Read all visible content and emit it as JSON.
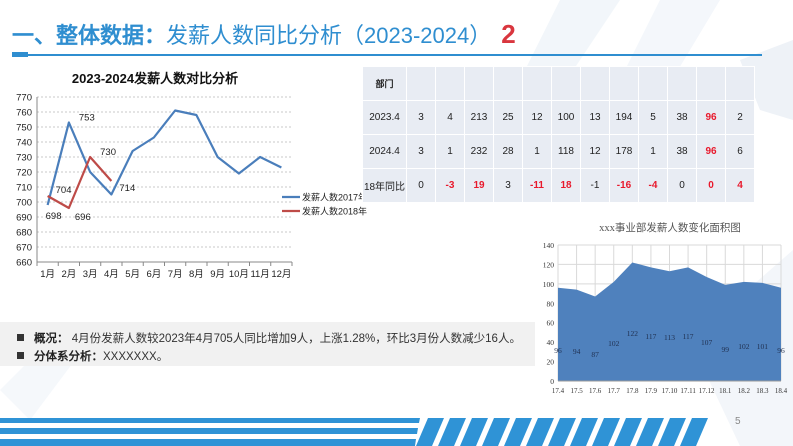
{
  "header": {
    "title_prefix": "一、整体数据：",
    "title_main": "发薪人数同比分析（2023-2024）",
    "section_number": "2",
    "accent_color": "#2f8ed0",
    "number_color": "#d9363e"
  },
  "line_chart": {
    "title": "2023-2024发薪人数对比分析"
  },
  "table": {
    "header_label": "部门",
    "rows": [
      {
        "label": "2023.4",
        "values": [
          "3",
          "4",
          "213",
          "25",
          "12",
          "100",
          "13",
          "194",
          "5",
          "38",
          "96",
          "2"
        ]
      },
      {
        "label": "2024.4",
        "values": [
          "3",
          "1",
          "232",
          "28",
          "1",
          "118",
          "12",
          "178",
          "1",
          "38",
          "96",
          "6"
        ]
      },
      {
        "label": "18年同比",
        "values": [
          "0",
          "-3",
          "19",
          "3",
          "-11",
          "18",
          "-1",
          "-16",
          "-4",
          "0",
          "0",
          "4"
        ]
      }
    ],
    "highlight_color": "#e8192c"
  },
  "area_chart": {
    "title": "xxx事业部发薪人数变化面积图"
  },
  "summary": {
    "items": [
      {
        "label": "概况：",
        "text": " 4月份发薪人数较2023年4月705人同比增加9人，上涨1.28%，环比3月份人数减少16人。"
      },
      {
        "label": "分体系分析：",
        "text": "XXXXXXX。"
      }
    ]
  },
  "footer": {
    "page_number": "5"
  },
  "chart_data": [
    {
      "type": "line",
      "title": "2023-2024发薪人数对比分析",
      "categories": [
        "1月",
        "2月",
        "3月",
        "4月",
        "5月",
        "6月",
        "7月",
        "8月",
        "9月",
        "10月",
        "11月",
        "12月"
      ],
      "series": [
        {
          "name": "发薪人数2017年",
          "color": "#4a7ebb",
          "values": [
            698,
            753,
            720,
            705,
            734,
            743,
            761,
            758,
            730,
            719,
            730,
            723
          ]
        },
        {
          "name": "发薪人数2018年",
          "color": "#be4b48",
          "values": [
            704,
            696,
            730,
            714,
            null,
            null,
            null,
            null,
            null,
            null,
            null,
            null
          ]
        }
      ],
      "data_labels": [
        {
          "series": "发薪人数2017年",
          "category": "1月",
          "value": 698
        },
        {
          "series": "发薪人数2017年",
          "category": "2月",
          "value": 753
        },
        {
          "series": "发薪人数2018年",
          "category": "1月",
          "value": 704
        },
        {
          "series": "发薪人数2018年",
          "category": "2月",
          "value": 696
        },
        {
          "series": "发薪人数2018年",
          "category": "3月",
          "value": 730
        },
        {
          "series": "发薪人数2018年",
          "category": "4月",
          "value": 714
        }
      ],
      "xlabel": "",
      "ylabel": "",
      "ylim": [
        660,
        770
      ],
      "yticks": [
        660,
        670,
        680,
        690,
        700,
        710,
        720,
        730,
        740,
        750,
        760,
        770
      ],
      "grid": true,
      "legend_position": "right"
    },
    {
      "type": "area",
      "title": "xxx事业部发薪人数变化面积图",
      "categories": [
        "17.4",
        "17.5",
        "17.6",
        "17.7",
        "17.8",
        "17.9",
        "17.10",
        "17.11",
        "17.12",
        "18.1",
        "18.2",
        "18.3",
        "18.4"
      ],
      "series": [
        {
          "name": "发薪人数",
          "color": "#4f81bd",
          "values": [
            96,
            94,
            87,
            102,
            122,
            117,
            113,
            117,
            107,
            99,
            102,
            101,
            96
          ]
        }
      ],
      "xlabel": "",
      "ylabel": "",
      "ylim": [
        0,
        140
      ],
      "yticks": [
        0,
        20,
        40,
        60,
        80,
        100,
        120,
        140
      ],
      "grid": true,
      "legend_position": "none"
    }
  ]
}
